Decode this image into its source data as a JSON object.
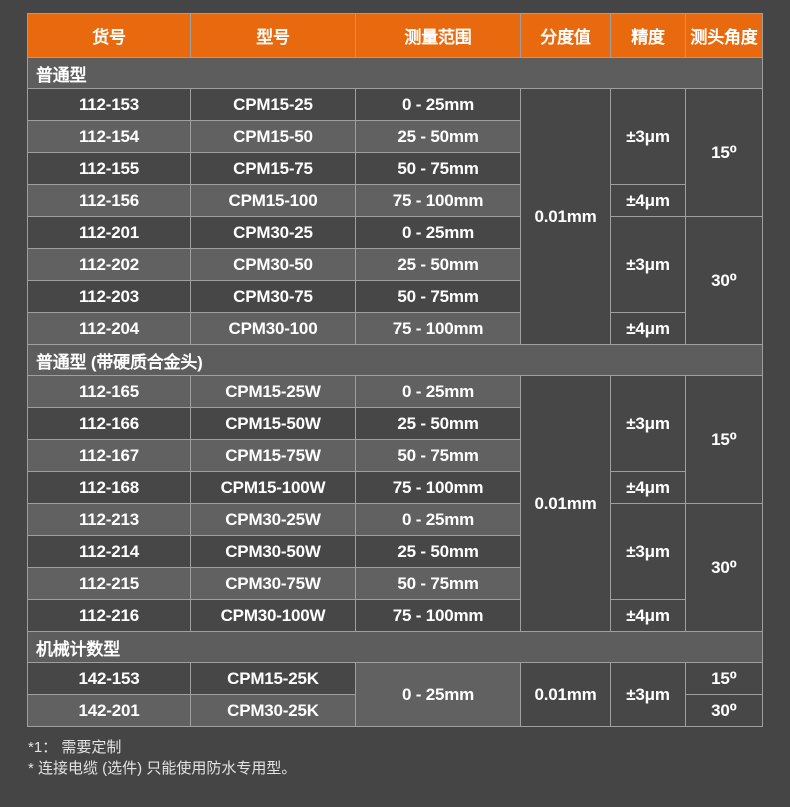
{
  "table": {
    "columns": [
      "货号",
      "型号",
      "测量范围",
      "分度值",
      "精度",
      "测头角度"
    ],
    "sections": [
      {
        "title": "普通型",
        "graduation": "0.01mm",
        "accuracy": [
          "±3μm",
          "±4μm",
          "±3μm",
          "±4μm"
        ],
        "angles": [
          "15⁰",
          "30⁰"
        ],
        "rows": [
          {
            "sku": "112-153",
            "model": "CPM15-25",
            "range": "0 - 25mm"
          },
          {
            "sku": "112-154",
            "model": "CPM15-50",
            "range": "25 - 50mm"
          },
          {
            "sku": "112-155",
            "model": "CPM15-75",
            "range": "50 - 75mm"
          },
          {
            "sku": "112-156",
            "model": "CPM15-100",
            "range": "75 - 100mm"
          },
          {
            "sku": "112-201",
            "model": "CPM30-25",
            "range": "0 - 25mm"
          },
          {
            "sku": "112-202",
            "model": "CPM30-50",
            "range": "25 - 50mm"
          },
          {
            "sku": "112-203",
            "model": "CPM30-75",
            "range": "50 - 75mm"
          },
          {
            "sku": "112-204",
            "model": "CPM30-100",
            "range": "75 - 100mm"
          }
        ]
      },
      {
        "title": "普通型 (带硬质合金头)",
        "graduation": "0.01mm",
        "accuracy": [
          "±3μm",
          "±4μm",
          "±3μm",
          "±4μm"
        ],
        "angles": [
          "15⁰",
          "30⁰"
        ],
        "rows": [
          {
            "sku": "112-165",
            "model": "CPM15-25W",
            "range": "0 - 25mm"
          },
          {
            "sku": "112-166",
            "model": "CPM15-50W",
            "range": "25 - 50mm"
          },
          {
            "sku": "112-167",
            "model": "CPM15-75W",
            "range": "50 - 75mm"
          },
          {
            "sku": "112-168",
            "model": "CPM15-100W",
            "range": "75 - 100mm"
          },
          {
            "sku": "112-213",
            "model": "CPM30-25W",
            "range": "0 - 25mm"
          },
          {
            "sku": "112-214",
            "model": "CPM30-50W",
            "range": "25 - 50mm"
          },
          {
            "sku": "112-215",
            "model": "CPM30-75W",
            "range": "50 - 75mm"
          },
          {
            "sku": "112-216",
            "model": "CPM30-100W",
            "range": "75 - 100mm"
          }
        ]
      },
      {
        "title": "机械计数型",
        "range": "0 - 25mm",
        "graduation": "0.01mm",
        "accuracy": [
          "±3μm"
        ],
        "angles": [
          "15⁰",
          "30⁰"
        ],
        "rows": [
          {
            "sku": "142-153",
            "model": "CPM15-25K"
          },
          {
            "sku": "142-201",
            "model": "CPM30-25K"
          }
        ]
      }
    ]
  },
  "footnotes": [
    "*1： 需要定制",
    "* 连接电缆 (选件) 只能使用防水专用型。"
  ],
  "colors": {
    "header_orange": "#e8690e",
    "row_dark": "#474747",
    "row_light": "#616161",
    "section_bg": "#5d5d5d",
    "border": "#9f9f9f",
    "page_bg": "#454545",
    "text": "#ffffff"
  }
}
